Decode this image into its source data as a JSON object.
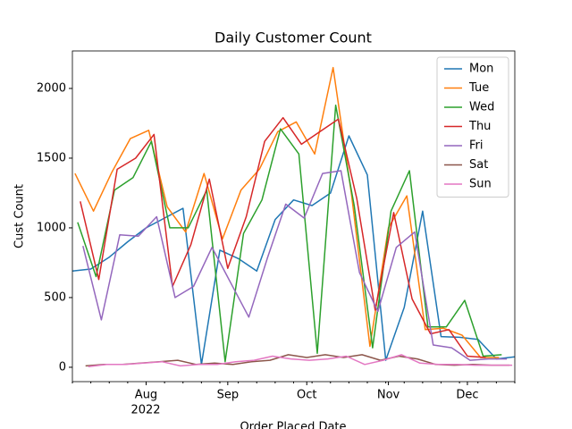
{
  "chart_data": {
    "type": "line",
    "title": "Daily Customer Count",
    "x_label": "Order Placed Date",
    "y_label": "Cust Count",
    "x_offset_label": "2022",
    "xlim": [
      "2022-07-04",
      "2022-12-19"
    ],
    "xticks": [
      {
        "value": "2022-08-01",
        "label": "Aug"
      },
      {
        "value": "2022-09-01",
        "label": "Sep"
      },
      {
        "value": "2022-10-01",
        "label": "Oct"
      },
      {
        "value": "2022-11-01",
        "label": "Nov"
      },
      {
        "value": "2022-12-01",
        "label": "Dec"
      }
    ],
    "ylim": [
      -103,
      2269
    ],
    "yticks": [
      0,
      500,
      1000,
      1500,
      2000
    ],
    "legend": "upper right",
    "series": [
      {
        "name": "Mon",
        "color": "#1f77b4",
        "x": [
          "2022-07-04",
          "2022-07-11",
          "2022-07-18",
          "2022-07-25",
          "2022-08-01",
          "2022-08-08",
          "2022-08-15",
          "2022-08-22",
          "2022-08-29",
          "2022-09-05",
          "2022-09-12",
          "2022-09-19",
          "2022-09-26",
          "2022-10-03",
          "2022-10-10",
          "2022-10-17",
          "2022-10-24",
          "2022-10-31",
          "2022-11-07",
          "2022-11-14",
          "2022-11-21",
          "2022-11-28",
          "2022-12-05",
          "2022-12-12",
          "2022-12-19"
        ],
        "values": [
          690,
          705,
          790,
          900,
          1000,
          1070,
          1140,
          20,
          840,
          780,
          690,
          1060,
          1200,
          1160,
          1250,
          1660,
          1380,
          50,
          430,
          1120,
          220,
          215,
          200,
          60,
          75
        ]
      },
      {
        "name": "Tue",
        "color": "#ff7f0e",
        "x": [
          "2022-07-05",
          "2022-07-12",
          "2022-07-19",
          "2022-07-26",
          "2022-08-02",
          "2022-08-09",
          "2022-08-16",
          "2022-08-23",
          "2022-08-30",
          "2022-09-06",
          "2022-09-13",
          "2022-09-20",
          "2022-09-27",
          "2022-10-04",
          "2022-10-11",
          "2022-10-18",
          "2022-10-25",
          "2022-11-01",
          "2022-11-08",
          "2022-11-15",
          "2022-11-22",
          "2022-11-29",
          "2022-12-06",
          "2022-12-13"
        ],
        "values": [
          1390,
          1120,
          1400,
          1640,
          1700,
          1150,
          970,
          1390,
          920,
          1270,
          1420,
          1690,
          1760,
          1530,
          2150,
          1240,
          150,
          1000,
          1230,
          270,
          280,
          230,
          70,
          70
        ]
      },
      {
        "name": "Wed",
        "color": "#2ca02c",
        "x": [
          "2022-07-06",
          "2022-07-13",
          "2022-07-20",
          "2022-07-27",
          "2022-08-03",
          "2022-08-10",
          "2022-08-17",
          "2022-08-24",
          "2022-08-31",
          "2022-09-07",
          "2022-09-14",
          "2022-09-21",
          "2022-09-28",
          "2022-10-05",
          "2022-10-12",
          "2022-10-19",
          "2022-10-26",
          "2022-11-02",
          "2022-11-09",
          "2022-11-16",
          "2022-11-23",
          "2022-11-30",
          "2022-12-07",
          "2022-12-14"
        ],
        "values": [
          1040,
          650,
          1270,
          1360,
          1620,
          1000,
          1000,
          1270,
          40,
          960,
          1200,
          1710,
          1530,
          100,
          1880,
          1160,
          140,
          1120,
          1410,
          290,
          290,
          480,
          80,
          90
        ]
      },
      {
        "name": "Thu",
        "color": "#d62728",
        "x": [
          "2022-07-07",
          "2022-07-14",
          "2022-07-21",
          "2022-07-28",
          "2022-08-04",
          "2022-08-11",
          "2022-08-18",
          "2022-08-25",
          "2022-09-01",
          "2022-09-08",
          "2022-09-15",
          "2022-09-22",
          "2022-09-29",
          "2022-10-06",
          "2022-10-13",
          "2022-10-20",
          "2022-10-27",
          "2022-11-03",
          "2022-11-10",
          "2022-11-17",
          "2022-11-24",
          "2022-12-01",
          "2022-12-08"
        ],
        "values": [
          1190,
          630,
          1420,
          1500,
          1670,
          580,
          880,
          1350,
          710,
          1080,
          1620,
          1790,
          1600,
          1690,
          1780,
          1210,
          410,
          1110,
          490,
          240,
          270,
          80,
          70
        ]
      },
      {
        "name": "Fri",
        "color": "#9467bd",
        "x": [
          "2022-07-08",
          "2022-07-15",
          "2022-07-22",
          "2022-07-29",
          "2022-08-05",
          "2022-08-12",
          "2022-08-19",
          "2022-08-26",
          "2022-09-02",
          "2022-09-09",
          "2022-09-16",
          "2022-09-23",
          "2022-09-30",
          "2022-10-07",
          "2022-10-14",
          "2022-10-21",
          "2022-10-28",
          "2022-11-04",
          "2022-11-11",
          "2022-11-18",
          "2022-11-25",
          "2022-12-02",
          "2022-12-09",
          "2022-12-16"
        ],
        "values": [
          870,
          340,
          950,
          940,
          1080,
          500,
          580,
          860,
          610,
          360,
          780,
          1170,
          1070,
          1390,
          1410,
          680,
          400,
          860,
          970,
          160,
          140,
          50,
          60,
          60
        ]
      },
      {
        "name": "Sat",
        "color": "#8c564b",
        "x": [
          "2022-07-09",
          "2022-07-16",
          "2022-07-23",
          "2022-07-30",
          "2022-08-06",
          "2022-08-13",
          "2022-08-20",
          "2022-08-27",
          "2022-09-03",
          "2022-09-10",
          "2022-09-17",
          "2022-09-24",
          "2022-10-01",
          "2022-10-08",
          "2022-10-15",
          "2022-10-22",
          "2022-10-29",
          "2022-11-05",
          "2022-11-12",
          "2022-11-19",
          "2022-11-26",
          "2022-12-03",
          "2022-12-10",
          "2022-12-17"
        ],
        "values": [
          10,
          20,
          20,
          30,
          40,
          50,
          20,
          30,
          20,
          40,
          50,
          90,
          70,
          90,
          70,
          90,
          50,
          80,
          60,
          20,
          15,
          20,
          15,
          15
        ]
      },
      {
        "name": "Sun",
        "color": "#e377c2",
        "x": [
          "2022-07-10",
          "2022-07-17",
          "2022-07-24",
          "2022-07-31",
          "2022-08-07",
          "2022-08-14",
          "2022-08-21",
          "2022-08-28",
          "2022-09-04",
          "2022-09-11",
          "2022-09-18",
          "2022-09-25",
          "2022-10-02",
          "2022-10-09",
          "2022-10-16",
          "2022-10-23",
          "2022-10-30",
          "2022-11-06",
          "2022-11-13",
          "2022-11-20",
          "2022-11-27",
          "2022-12-04",
          "2022-12-11",
          "2022-12-18"
        ],
        "values": [
          5,
          20,
          20,
          30,
          40,
          10,
          20,
          20,
          40,
          50,
          80,
          60,
          50,
          60,
          80,
          20,
          50,
          90,
          30,
          20,
          20,
          15,
          15,
          15
        ]
      }
    ]
  }
}
